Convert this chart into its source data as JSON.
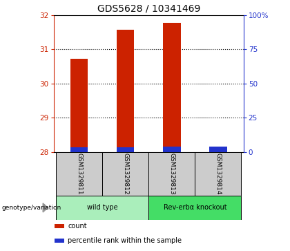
{
  "title": "GDS5628 / 10341469",
  "samples": [
    "GSM1329811",
    "GSM1329812",
    "GSM1329813",
    "GSM1329814"
  ],
  "count_values": [
    30.72,
    31.58,
    31.78,
    28.04
  ],
  "percentile_values": [
    3.2,
    3.5,
    3.7,
    4.0
  ],
  "ylim_left": [
    28,
    32
  ],
  "ylim_right": [
    0,
    100
  ],
  "yticks_left": [
    28,
    29,
    30,
    31,
    32
  ],
  "yticks_right": [
    0,
    25,
    50,
    75,
    100
  ],
  "ytick_labels_right": [
    "0",
    "25",
    "50",
    "75",
    "100%"
  ],
  "red_color": "#cc2200",
  "blue_color": "#2233cc",
  "groups": [
    {
      "label": "wild type",
      "samples": [
        0,
        1
      ],
      "color": "#aaeebb"
    },
    {
      "label": "Rev-erbα knockout",
      "samples": [
        2,
        3
      ],
      "color": "#44dd66"
    }
  ],
  "bg_table": "#cccccc",
  "title_fontsize": 10,
  "tick_fontsize": 7.5,
  "bar_width": 0.38
}
